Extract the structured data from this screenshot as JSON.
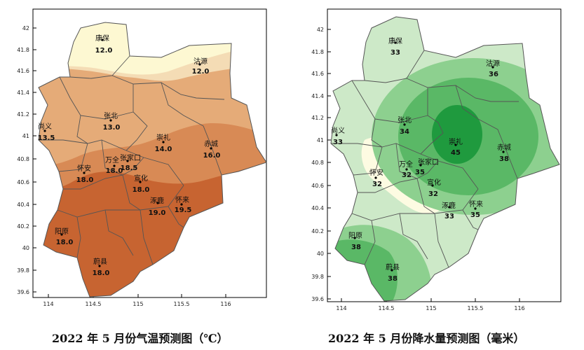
{
  "maps": [
    {
      "id": "temp",
      "caption": "2022 年 5 月份气温预测图（℃）",
      "y_ticks": [
        "42",
        "41.8",
        "41.6",
        "41.4",
        "41.2",
        "41",
        "40.8",
        "40.6",
        "40.4",
        "40.2",
        "40",
        "39.8",
        "39.6"
      ],
      "x_ticks": [
        "114",
        "114.5",
        "115",
        "115.5",
        "116"
      ],
      "stations": [
        {
          "name": "康保",
          "value": "12.0"
        },
        {
          "name": "沽源",
          "value": "12.0"
        },
        {
          "name": "尚义",
          "value": "13.5"
        },
        {
          "name": "张北",
          "value": "13.0"
        },
        {
          "name": "崇礼",
          "value": "14.0"
        },
        {
          "name": "赤城",
          "value": "16.0"
        },
        {
          "name": "万全",
          "value": "18.0"
        },
        {
          "name": "张家口",
          "value": "18.5"
        },
        {
          "name": "怀安",
          "value": "18.0"
        },
        {
          "name": "宣化",
          "value": "18.0"
        },
        {
          "name": "涿鹿",
          "value": "19.0"
        },
        {
          "name": "怀来",
          "value": "19.5"
        },
        {
          "name": "阳原",
          "value": "18.0"
        },
        {
          "name": "蔚县",
          "value": "18.0"
        }
      ],
      "colors": {
        "band1": "#fdf8d2",
        "band2": "#f4dcb5",
        "band3": "#e5ab78",
        "band4": "#d88a55",
        "band5": "#c76431"
      }
    },
    {
      "id": "rain",
      "caption": "2022 年 5 月份降水量预测图（毫米）",
      "y_ticks": [
        "42",
        "41.8",
        "41.6",
        "41.4",
        "41.2",
        "41",
        "40.8",
        "40.6",
        "40.4",
        "40.2",
        "40",
        "39.8",
        "39.6"
      ],
      "x_ticks": [
        "114",
        "114.5",
        "115",
        "115.5",
        "116"
      ],
      "stations": [
        {
          "name": "康保",
          "value": "33"
        },
        {
          "name": "沽源",
          "value": "36"
        },
        {
          "name": "尚义",
          "value": "33"
        },
        {
          "name": "张北",
          "value": "34"
        },
        {
          "name": "崇礼",
          "value": "45"
        },
        {
          "name": "赤城",
          "value": "38"
        },
        {
          "name": "万全",
          "value": "32"
        },
        {
          "name": "张家口",
          "value": "35"
        },
        {
          "name": "怀安",
          "value": "32"
        },
        {
          "name": "宣化",
          "value": "32"
        },
        {
          "name": "涿鹿",
          "value": "33"
        },
        {
          "name": "怀来",
          "value": "35"
        },
        {
          "name": "阳原",
          "value": "38"
        },
        {
          "name": "蔚县",
          "value": "38"
        }
      ],
      "colors": {
        "band1": "#fdfbe2",
        "band2": "#cde9c8",
        "band3": "#8dd08f",
        "band4": "#5ab866",
        "band5": "#1f9a3e"
      }
    }
  ]
}
